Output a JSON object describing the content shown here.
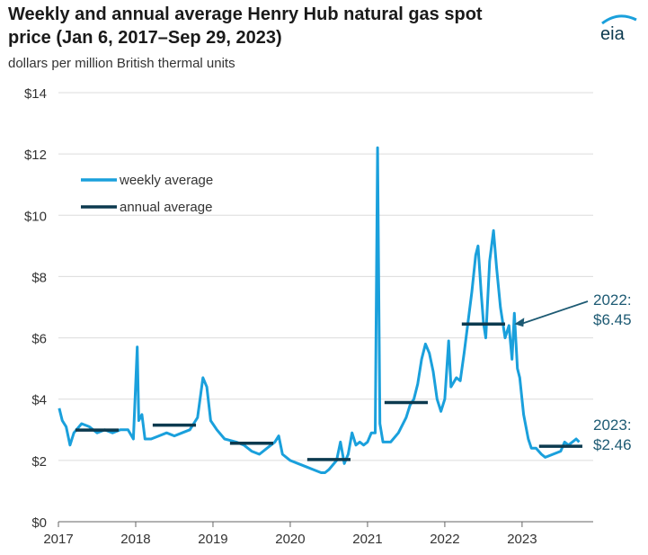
{
  "header": {
    "title_line1": "Weekly and annual average Henry Hub natural gas spot",
    "title_line2": "price (Jan 6, 2017–Sep 29, 2023)",
    "subtitle": "dollars per million British thermal units",
    "logo_text": "eia"
  },
  "colors": {
    "weekly": "#1aa0dc",
    "annual": "#0c3a4f",
    "axis": "#666666",
    "grid": "#dcdcdc",
    "annotation": "#1d5a73"
  },
  "chart_data": {
    "type": "line",
    "title": "Weekly and annual average Henry Hub natural gas spot price (Jan 6, 2017–Sep 29, 2023)",
    "ylabel": "dollars per million British thermal units",
    "xlabel": "",
    "xlim": [
      2017.0,
      2023.92
    ],
    "ylim": [
      0,
      14
    ],
    "grid": "horizontal",
    "legend_position": "upper-left",
    "x_ticks": [
      "2017",
      "2018",
      "2019",
      "2020",
      "2021",
      "2022",
      "2023"
    ],
    "y_ticks": [
      "$0",
      "$2",
      "$4",
      "$6",
      "$8",
      "$10",
      "$12",
      "$14"
    ],
    "series": [
      {
        "name": "weekly average",
        "style": "line",
        "points": [
          [
            2017.01,
            3.7
          ],
          [
            2017.05,
            3.3
          ],
          [
            2017.1,
            3.1
          ],
          [
            2017.15,
            2.5
          ],
          [
            2017.2,
            2.9
          ],
          [
            2017.3,
            3.2
          ],
          [
            2017.4,
            3.1
          ],
          [
            2017.5,
            2.9
          ],
          [
            2017.6,
            3.0
          ],
          [
            2017.7,
            2.9
          ],
          [
            2017.8,
            3.0
          ],
          [
            2017.9,
            3.0
          ],
          [
            2017.97,
            2.7
          ],
          [
            2018.02,
            5.7
          ],
          [
            2018.04,
            3.3
          ],
          [
            2018.08,
            3.5
          ],
          [
            2018.12,
            2.7
          ],
          [
            2018.2,
            2.7
          ],
          [
            2018.3,
            2.8
          ],
          [
            2018.4,
            2.9
          ],
          [
            2018.5,
            2.8
          ],
          [
            2018.6,
            2.9
          ],
          [
            2018.7,
            3.0
          ],
          [
            2018.75,
            3.2
          ],
          [
            2018.8,
            3.4
          ],
          [
            2018.87,
            4.7
          ],
          [
            2018.92,
            4.4
          ],
          [
            2018.97,
            3.3
          ],
          [
            2019.05,
            3.0
          ],
          [
            2019.15,
            2.7
          ],
          [
            2019.3,
            2.6
          ],
          [
            2019.4,
            2.5
          ],
          [
            2019.5,
            2.3
          ],
          [
            2019.6,
            2.2
          ],
          [
            2019.7,
            2.4
          ],
          [
            2019.8,
            2.6
          ],
          [
            2019.85,
            2.8
          ],
          [
            2019.9,
            2.2
          ],
          [
            2020.0,
            2.0
          ],
          [
            2020.1,
            1.9
          ],
          [
            2020.2,
            1.8
          ],
          [
            2020.3,
            1.7
          ],
          [
            2020.4,
            1.6
          ],
          [
            2020.45,
            1.6
          ],
          [
            2020.5,
            1.7
          ],
          [
            2020.6,
            2.0
          ],
          [
            2020.65,
            2.6
          ],
          [
            2020.7,
            1.9
          ],
          [
            2020.75,
            2.2
          ],
          [
            2020.8,
            2.9
          ],
          [
            2020.85,
            2.5
          ],
          [
            2020.9,
            2.6
          ],
          [
            2020.95,
            2.5
          ],
          [
            2021.0,
            2.6
          ],
          [
            2021.05,
            2.9
          ],
          [
            2021.1,
            2.9
          ],
          [
            2021.13,
            12.2
          ],
          [
            2021.16,
            3.2
          ],
          [
            2021.2,
            2.6
          ],
          [
            2021.3,
            2.6
          ],
          [
            2021.4,
            2.9
          ],
          [
            2021.5,
            3.4
          ],
          [
            2021.55,
            3.8
          ],
          [
            2021.6,
            4.0
          ],
          [
            2021.65,
            4.5
          ],
          [
            2021.7,
            5.3
          ],
          [
            2021.75,
            5.8
          ],
          [
            2021.8,
            5.5
          ],
          [
            2021.85,
            4.9
          ],
          [
            2021.9,
            4.0
          ],
          [
            2021.95,
            3.6
          ],
          [
            2022.0,
            4.0
          ],
          [
            2022.05,
            5.9
          ],
          [
            2022.08,
            4.4
          ],
          [
            2022.15,
            4.7
          ],
          [
            2022.2,
            4.6
          ],
          [
            2022.25,
            5.5
          ],
          [
            2022.3,
            6.5
          ],
          [
            2022.35,
            7.5
          ],
          [
            2022.4,
            8.7
          ],
          [
            2022.43,
            9.0
          ],
          [
            2022.47,
            7.5
          ],
          [
            2022.5,
            6.5
          ],
          [
            2022.53,
            6.0
          ],
          [
            2022.58,
            8.5
          ],
          [
            2022.63,
            9.5
          ],
          [
            2022.67,
            8.3
          ],
          [
            2022.72,
            7.0
          ],
          [
            2022.78,
            6.0
          ],
          [
            2022.83,
            6.4
          ],
          [
            2022.87,
            5.3
          ],
          [
            2022.9,
            6.8
          ],
          [
            2022.94,
            5.0
          ],
          [
            2022.97,
            4.7
          ],
          [
            2023.02,
            3.5
          ],
          [
            2023.08,
            2.7
          ],
          [
            2023.12,
            2.4
          ],
          [
            2023.18,
            2.4
          ],
          [
            2023.25,
            2.2
          ],
          [
            2023.3,
            2.1
          ],
          [
            2023.4,
            2.2
          ],
          [
            2023.5,
            2.3
          ],
          [
            2023.55,
            2.6
          ],
          [
            2023.6,
            2.5
          ],
          [
            2023.65,
            2.6
          ],
          [
            2023.7,
            2.7
          ],
          [
            2023.74,
            2.6
          ]
        ]
      },
      {
        "name": "annual average",
        "style": "segments",
        "segments": [
          {
            "x0": 2017.22,
            "x1": 2017.78,
            "y": 2.99
          },
          {
            "x0": 2018.22,
            "x1": 2018.78,
            "y": 3.15
          },
          {
            "x0": 2019.22,
            "x1": 2019.78,
            "y": 2.56
          },
          {
            "x0": 2020.22,
            "x1": 2020.78,
            "y": 2.03
          },
          {
            "x0": 2021.22,
            "x1": 2021.78,
            "y": 3.89
          },
          {
            "x0": 2022.22,
            "x1": 2022.78,
            "y": 6.45
          },
          {
            "x0": 2023.22,
            "x1": 2023.78,
            "y": 2.46
          }
        ]
      }
    ],
    "annotations": [
      {
        "line1": "2022:",
        "line2": "$6.45",
        "arrow": true,
        "x": 2022.9,
        "y": 6.45
      },
      {
        "line1": "2023:",
        "line2": "$2.46",
        "arrow": false,
        "x": 2023.8,
        "y": 2.46
      }
    ]
  }
}
